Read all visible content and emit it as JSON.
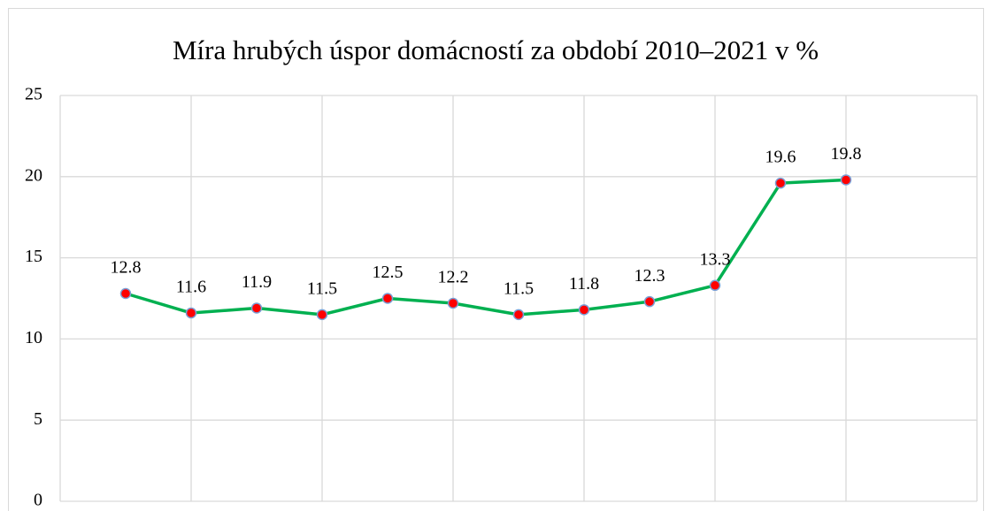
{
  "chart_data": {
    "type": "line",
    "title": "Míra hrubých úspor domácností za období 2010–2021 v %",
    "categories": [
      null,
      null,
      null,
      null,
      null,
      null,
      null,
      null,
      null,
      null,
      null,
      null
    ],
    "series": [
      {
        "name": null,
        "color": "#00b050",
        "marker_color": "#ff0000",
        "values": [
          12.8,
          11.6,
          11.9,
          11.5,
          12.5,
          12.2,
          11.5,
          11.8,
          12.3,
          13.3,
          19.6,
          19.8
        ]
      }
    ],
    "ylim": [
      0,
      25
    ],
    "yticks": [
      0,
      5,
      10,
      15,
      20,
      25
    ],
    "grid": true
  }
}
